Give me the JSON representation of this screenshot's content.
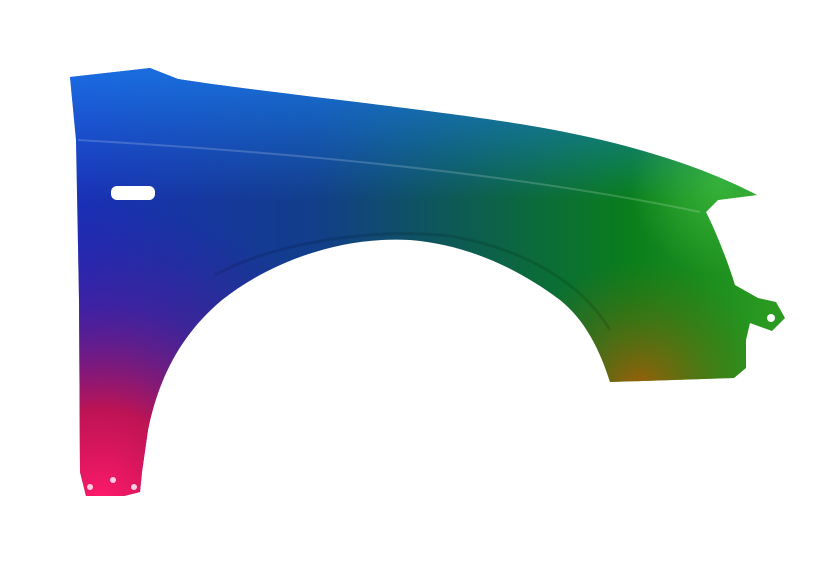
{
  "scene": {
    "subject": "car-fender-render",
    "colors": {
      "background": "#ffffff",
      "top_left": "#1438c0",
      "top_highlight": "#1a78e6",
      "middle": "#0d5a55",
      "right": "#0e8a1e",
      "right_highlight": "#2fb53a",
      "bottom_left": "#e0104a",
      "bottom_left_tip": "#ff2a7a",
      "bottom_right": "#8a5a0a"
    }
  }
}
